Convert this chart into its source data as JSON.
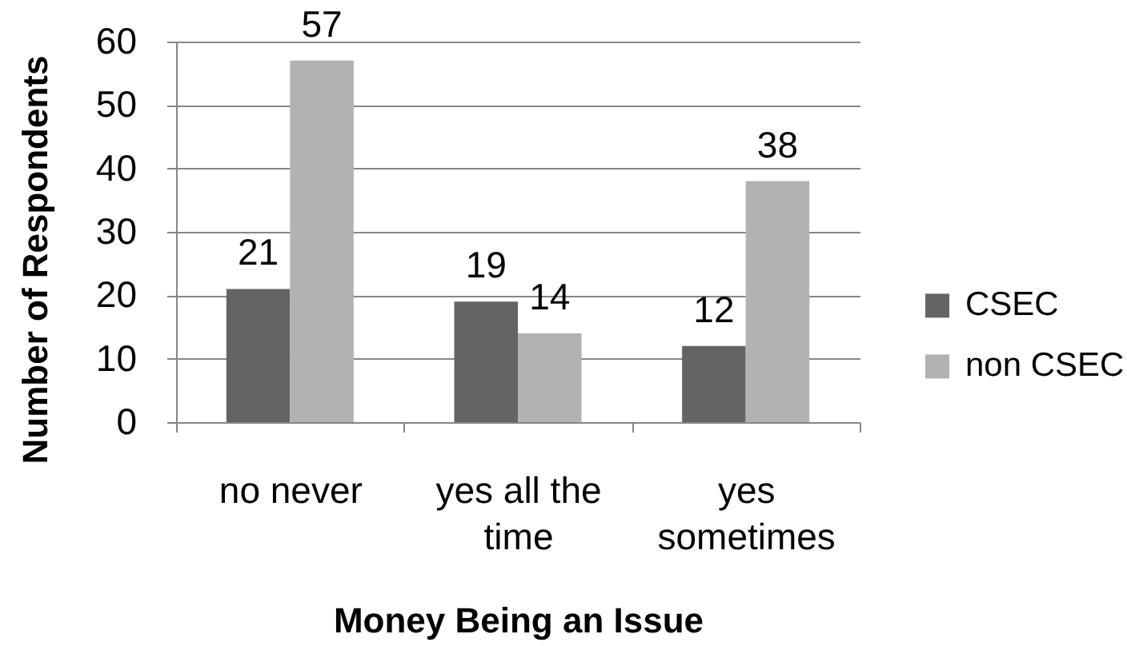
{
  "chart_data": {
    "type": "bar",
    "xlabel": "Money Being an Issue",
    "ylabel": "Number of Respondents",
    "categories": [
      "no never",
      "yes all the time",
      "yes sometimes"
    ],
    "series": [
      {
        "name": "CSEC",
        "color": "#646464",
        "values": [
          21,
          19,
          12
        ]
      },
      {
        "name": "non CSEC",
        "color": "#b2b2b2",
        "values": [
          57,
          14,
          38
        ]
      }
    ],
    "ylim": [
      0,
      60
    ],
    "yticks": [
      0,
      10,
      20,
      30,
      40,
      50,
      60
    ],
    "grid": "y",
    "legend": "right",
    "data_labels": true
  }
}
